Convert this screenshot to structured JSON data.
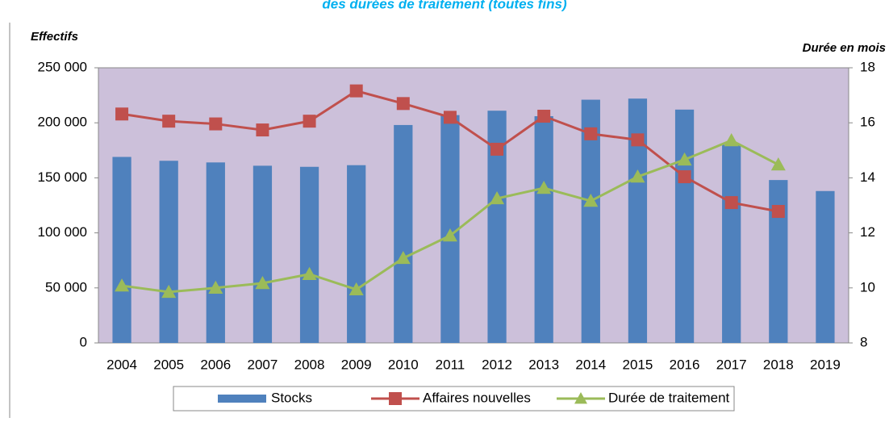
{
  "chart_data": {
    "type": "bar-line",
    "title": "des durées de traitement (toutes fins)",
    "ylabel": "Effectifs",
    "y2label": "Durée en mois",
    "categories": [
      "2004",
      "2005",
      "2006",
      "2007",
      "2008",
      "2009",
      "2010",
      "2011",
      "2012",
      "2013",
      "2014",
      "2015",
      "2016",
      "2017",
      "2018",
      "2019"
    ],
    "series": [
      {
        "name": "Stocks",
        "type": "bar",
        "color": "#4f81bd",
        "values": [
          169000,
          165500,
          164000,
          161000,
          160000,
          161500,
          198000,
          207000,
          211000,
          206000,
          221000,
          222000,
          212000,
          180000,
          148000,
          138000
        ]
      },
      {
        "name": "Affaires nouvelles",
        "type": "line",
        "marker": "square",
        "color": "#c0504d",
        "values": [
          208000,
          201500,
          199000,
          193500,
          201500,
          229000,
          217500,
          205000,
          176000,
          206000,
          190000,
          184500,
          151000,
          127500,
          119500,
          null
        ]
      },
      {
        "name": "Durée de traitement",
        "type": "line",
        "marker": "triangle",
        "axis": "y2",
        "color": "#9bbb59",
        "values": [
          10.08,
          9.85,
          10.0,
          10.17,
          10.5,
          9.94,
          11.08,
          11.9,
          13.25,
          13.63,
          13.16,
          14.04,
          14.66,
          15.36,
          14.48,
          null
        ]
      }
    ],
    "ylim": [
      0,
      250000
    ],
    "yticks": [
      0,
      {
        "value": 50000,
        "label": "50 000"
      },
      {
        "value": 100000,
        "label": "100 000"
      },
      {
        "value": 150000,
        "label": "150 000"
      },
      {
        "value": 200000,
        "label": "200 000"
      },
      {
        "value": 250000,
        "label": "250 000"
      }
    ],
    "y2lim": [
      8,
      18
    ],
    "y2ticks": [
      8,
      10,
      12,
      14,
      16,
      18
    ],
    "grid": false,
    "legend": "bottom",
    "plot_background": "#ccc0da"
  }
}
